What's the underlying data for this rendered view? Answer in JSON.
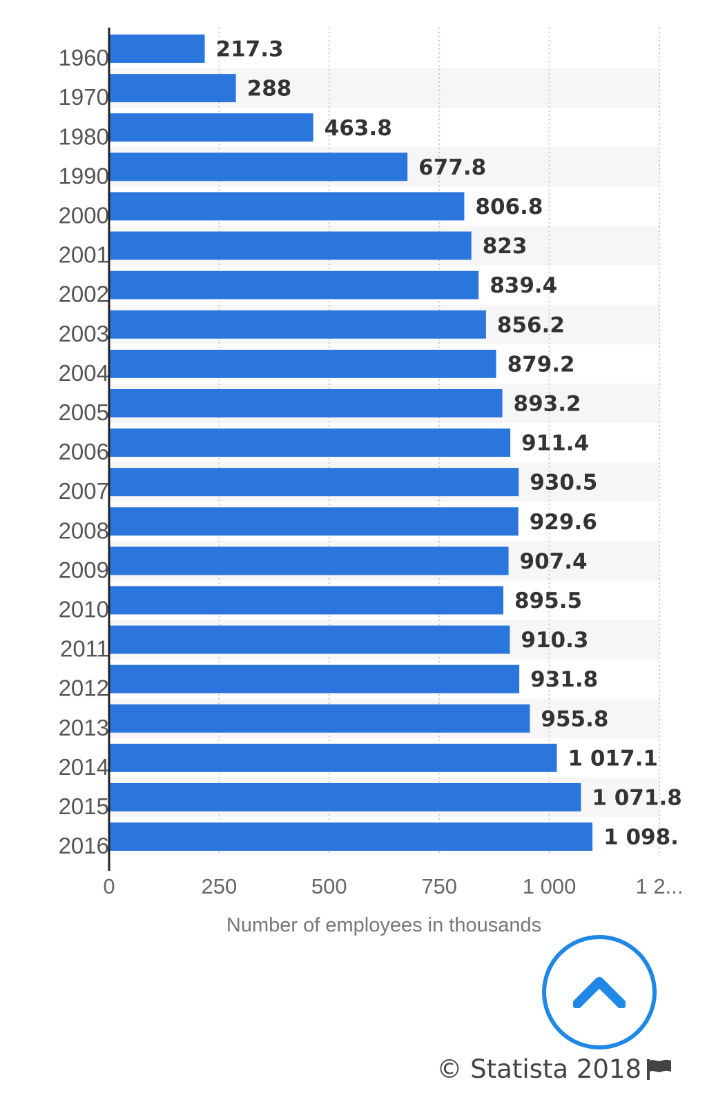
{
  "chart_data": {
    "type": "bar",
    "orientation": "horizontal",
    "title": "",
    "categories": [
      "1960",
      "1970",
      "1980",
      "1990",
      "2000",
      "2001",
      "2002",
      "2003",
      "2004",
      "2005",
      "2006",
      "2007",
      "2008",
      "2009",
      "2010",
      "2011",
      "2012",
      "2013",
      "2014",
      "2015",
      "2016"
    ],
    "values": [
      217.3,
      288,
      463.8,
      677.8,
      806.8,
      823,
      839.4,
      856.2,
      879.2,
      893.2,
      911.4,
      930.5,
      929.6,
      907.4,
      895.5,
      910.3,
      931.8,
      955.8,
      1017.1,
      1071.8,
      1098
    ],
    "value_labels": [
      "217.3",
      "288",
      "463.8",
      "677.8",
      "806.8",
      "823",
      "839.4",
      "856.2",
      "879.2",
      "893.2",
      "911.4",
      "930.5",
      "929.6",
      "907.4",
      "895.5",
      "910.3",
      "931.8",
      "955.8",
      "1 017.1",
      "1 071.8",
      "1 098."
    ],
    "xticks": [
      0,
      250,
      500,
      750,
      1000,
      1250
    ],
    "xtick_labels": [
      "0",
      "250",
      "500",
      "750",
      "1 000",
      "1 2..."
    ],
    "xlim": [
      0,
      1250
    ],
    "xlabel": "Number of employees in thousands",
    "ylabel": "",
    "bar_color": "#2a76dd",
    "grid": true
  },
  "footer": {
    "credit": "© Statista 2018",
    "flag_icon": "flag-icon"
  },
  "scroll_button": {
    "icon": "chevron-up-icon",
    "color": "#1f87e5"
  }
}
